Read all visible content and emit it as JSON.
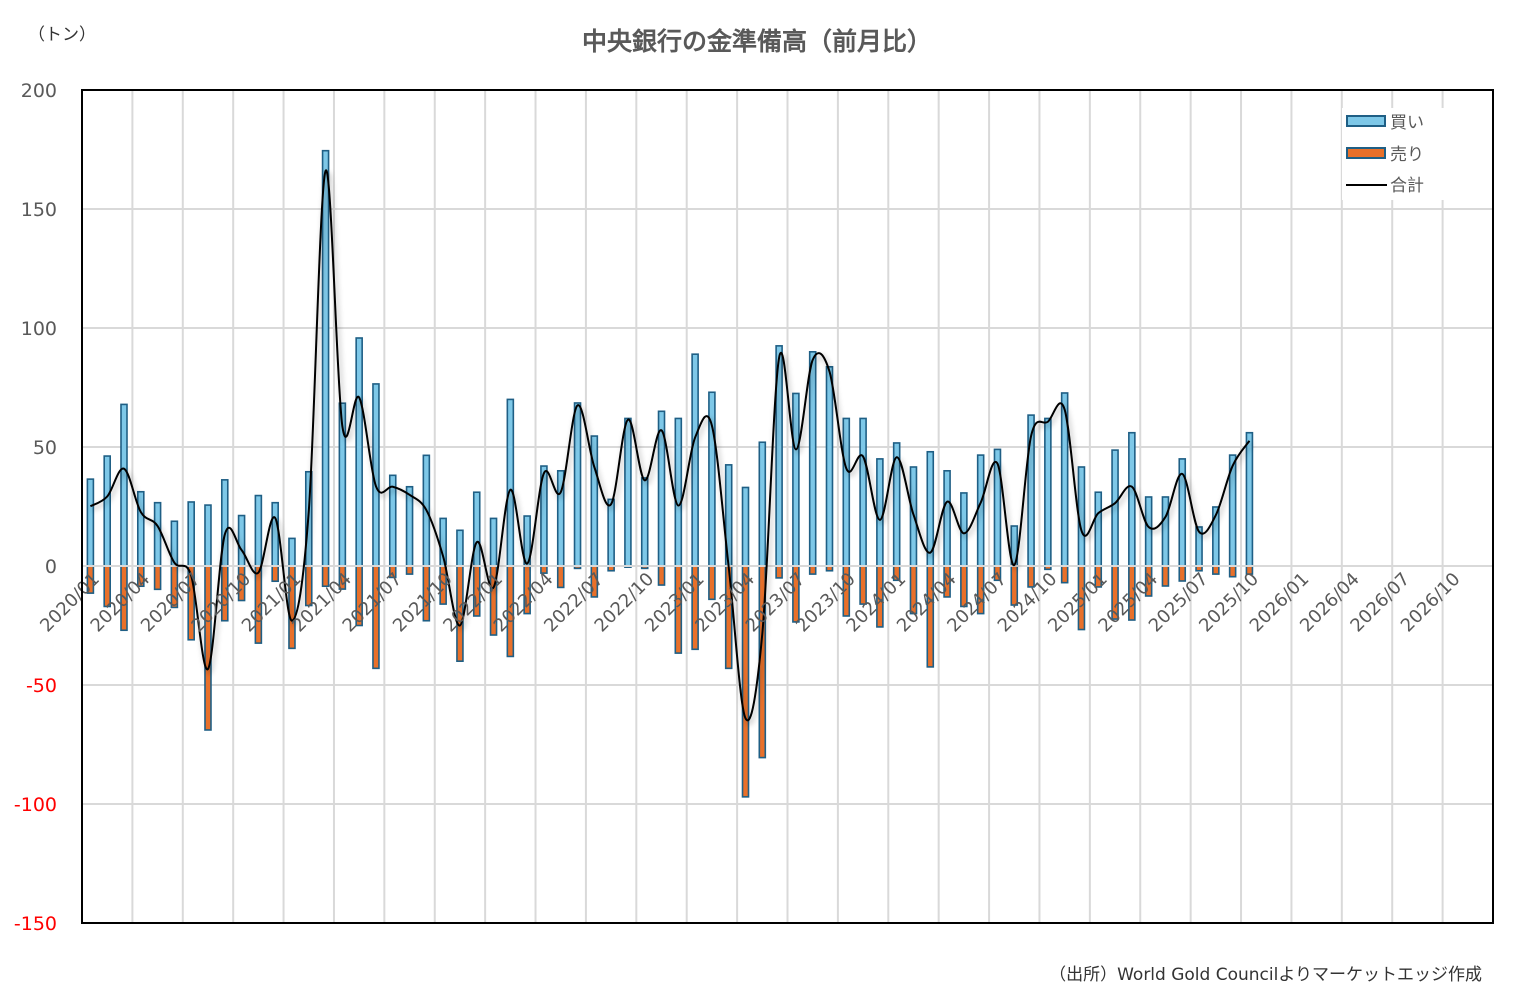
{
  "chart_data": {
    "type": "bar",
    "title": "中央銀行の金準備高（前月比）",
    "unit_label": "（トン）",
    "source": "（出所）World Gold Councilよりマーケットエッジ作成",
    "ylim": [
      -150,
      200
    ],
    "yticks": [
      200,
      150,
      100,
      50,
      0,
      -50,
      -100,
      -150
    ],
    "x_range": [
      "2020/01",
      "2026/12"
    ],
    "xtick_labels": [
      "2020/01",
      "2020/04",
      "2020/07",
      "2020/10",
      "2021/01",
      "2021/04",
      "2021/07",
      "2021/10",
      "2022/01",
      "2022/04",
      "2022/07",
      "2022/10",
      "2023/01",
      "2023/04",
      "2023/07",
      "2023/10",
      "2024/01",
      "2024/04",
      "2024/07",
      "2024/10",
      "2025/01",
      "2025/04",
      "2025/07",
      "2025/10",
      "2026/01",
      "2026/04",
      "2026/07",
      "2026/10"
    ],
    "grid": true,
    "legend_position": "top-right",
    "series": [
      {
        "name": "買い",
        "type": "bar",
        "color": "#7ec8e8",
        "values": [
          36.5,
          46.2,
          67.9,
          31.2,
          26.6,
          18.8,
          26.9,
          25.6,
          36.2,
          21.2,
          29.6,
          26.6,
          11.6,
          39.6,
          174.5,
          68.4,
          95.8,
          76.5,
          38.1,
          33.3,
          46.5,
          20,
          15,
          31,
          20,
          70,
          21,
          42,
          40,
          68.5,
          54.6,
          28,
          62,
          37,
          65,
          62,
          89,
          73,
          42.5,
          33,
          52,
          92.5,
          72.5,
          90,
          83.7,
          62,
          62,
          45,
          51.7,
          41.6,
          48,
          40,
          30.7,
          46.6,
          49,
          16.8,
          63.4,
          62,
          72.7,
          41.6,
          31,
          48.7,
          56,
          29,
          29,
          45,
          16.4,
          24.8,
          46.6,
          56
        ]
      },
      {
        "name": "売り",
        "type": "bar",
        "color": "#e8702a",
        "values": [
          -11.4,
          -17,
          -27,
          -8.5,
          -9.8,
          -17.4,
          -31,
          -68.9,
          -23,
          -14.5,
          -32.4,
          -6.4,
          -34.6,
          -16.6,
          -8.5,
          -9.7,
          -25,
          -43,
          -4.8,
          -3.4,
          -23,
          -16,
          -40,
          -21,
          -29,
          -38,
          -20,
          -3,
          -9,
          -1,
          -13,
          -2,
          -0.5,
          -1,
          -8,
          -36.6,
          -35,
          -14,
          -43,
          -97,
          -80.5,
          -5,
          -23.5,
          -3.4,
          -2,
          -21,
          -16,
          -25.6,
          -6,
          -20,
          -42.4,
          -13,
          -17,
          -20,
          -6,
          -16.4,
          -8.8,
          -1.4,
          -7,
          -26.7,
          -8.8,
          -22.3,
          -22.7,
          -12.6,
          -8.4,
          -6.3,
          -2,
          -3.4,
          -4.5,
          -3.4
        ]
      },
      {
        "name": "合計",
        "type": "line",
        "color": "#000000",
        "derived": "買い + 売り"
      }
    ]
  }
}
